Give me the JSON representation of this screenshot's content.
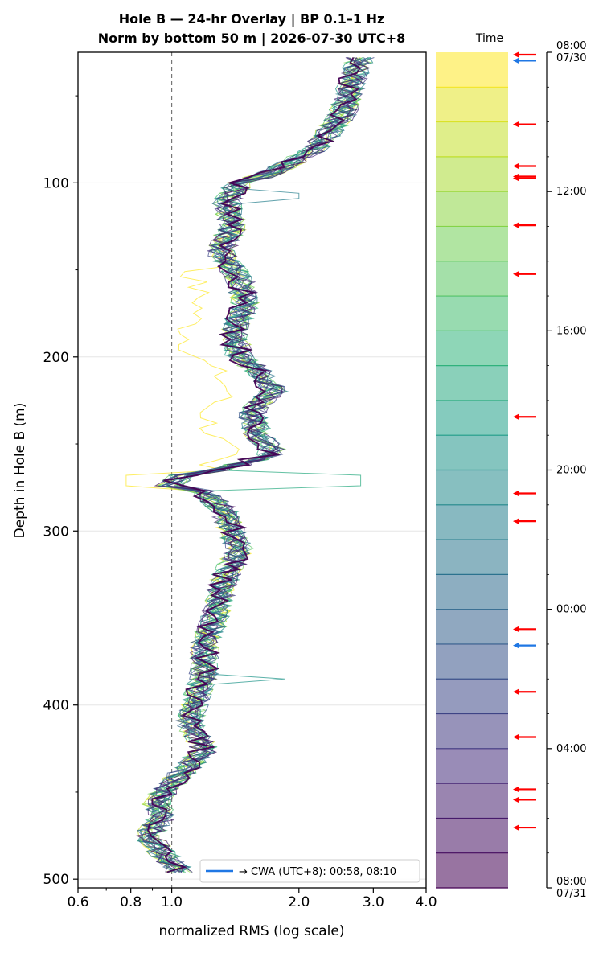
{
  "chart_data": {
    "type": "line",
    "title_line1": "Hole B — 24-hr Overlay  |  BP 0.1–1 Hz",
    "title_line2": "Norm by bottom 50 m  |  2026-07-30 UTC+8",
    "xlabel": "normalized RMS  (log scale)",
    "ylabel": "Depth in Hole B (m)",
    "xscale": "log",
    "xlim": [
      0.6,
      4.0
    ],
    "ylim": [
      505,
      25
    ],
    "xticks": [
      {
        "value": 0.6,
        "label": "0.6"
      },
      {
        "value": 0.8,
        "label": "0.8"
      },
      {
        "value": 1.0,
        "label": "1.0"
      },
      {
        "value": 2.0,
        "label": "2.0"
      },
      {
        "value": 3.0,
        "label": "3.0"
      },
      {
        "value": 4.0,
        "label": "4.0"
      }
    ],
    "yticks": [
      {
        "value": 100,
        "label": "100"
      },
      {
        "value": 200,
        "label": "200"
      },
      {
        "value": 300,
        "label": "300"
      },
      {
        "value": 400,
        "label": "400"
      },
      {
        "value": 500,
        "label": "500"
      }
    ],
    "reference_line_x": 1.0,
    "grid": "horizontal",
    "legend": {
      "label": "→ CWA (UTC+8): 00:58, 08:10",
      "color": "#1f77e4",
      "placement": "lower-right"
    },
    "representative_profile": {
      "depth": [
        28,
        40,
        60,
        80,
        95,
        100,
        110,
        125,
        140,
        155,
        170,
        185,
        200,
        210,
        220,
        230,
        245,
        255,
        265,
        275,
        285,
        300,
        310,
        325,
        340,
        355,
        365,
        380,
        395,
        410,
        425,
        440,
        455,
        465,
        475,
        485,
        495
      ],
      "rms": [
        2.8,
        2.7,
        2.55,
        2.2,
        1.7,
        1.45,
        1.35,
        1.4,
        1.3,
        1.45,
        1.5,
        1.4,
        1.45,
        1.65,
        1.75,
        1.55,
        1.6,
        1.75,
        1.3,
        1.15,
        1.3,
        1.4,
        1.45,
        1.35,
        1.3,
        1.25,
        1.2,
        1.2,
        1.15,
        1.1,
        1.2,
        1.05,
        0.92,
        0.95,
        0.88,
        0.95,
        1.05
      ]
    },
    "hourly_series_count": 24,
    "colorbar": {
      "title": "Time",
      "tick_labels": [
        "08:00\n07/30",
        "12:00",
        "16:00",
        "20:00",
        "00:00",
        "04:00",
        "08:00\n07/31"
      ],
      "colormap": [
        "#fde725",
        "#b5de2b",
        "#6ece58",
        "#35b779",
        "#1f9e89",
        "#26828e",
        "#31688e",
        "#3e4989",
        "#482878",
        "#440154"
      ],
      "event_arrows_hours": [
        {
          "hour": 0.0,
          "color": "#ff0000"
        },
        {
          "hour": 0.17,
          "color": "#1f77e4"
        },
        {
          "hour": 2.0,
          "color": "#ff0000"
        },
        {
          "hour": 3.2,
          "color": "#ff0000"
        },
        {
          "hour": 3.5,
          "color": "#ff0000"
        },
        {
          "hour": 3.55,
          "color": "#ff0000"
        },
        {
          "hour": 4.9,
          "color": "#ff0000"
        },
        {
          "hour": 6.3,
          "color": "#ff0000"
        },
        {
          "hour": 10.4,
          "color": "#ff0000"
        },
        {
          "hour": 12.6,
          "color": "#ff0000"
        },
        {
          "hour": 13.4,
          "color": "#ff0000"
        },
        {
          "hour": 16.5,
          "color": "#ff0000"
        },
        {
          "hour": 16.97,
          "color": "#1f77e4"
        },
        {
          "hour": 18.3,
          "color": "#ff0000"
        },
        {
          "hour": 19.6,
          "color": "#ff0000"
        },
        {
          "hour": 21.1,
          "color": "#ff0000"
        },
        {
          "hour": 21.4,
          "color": "#ff0000"
        },
        {
          "hour": 22.2,
          "color": "#ff0000"
        }
      ]
    }
  }
}
